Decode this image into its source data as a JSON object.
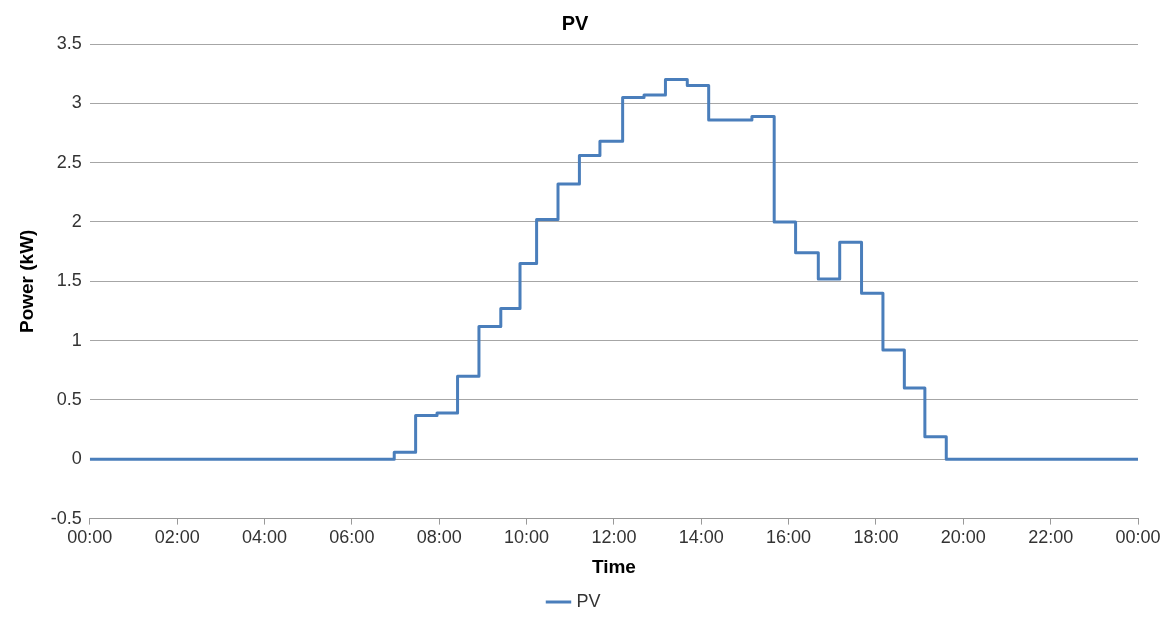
{
  "chart_data": {
    "type": "step",
    "title": "PV",
    "xlabel": "Time",
    "ylabel": "Power (kW)",
    "xlim": [
      0,
      24
    ],
    "xticks": [
      {
        "value": 0,
        "label": "00:00"
      },
      {
        "value": 2,
        "label": "02:00"
      },
      {
        "value": 4,
        "label": "04:00"
      },
      {
        "value": 6,
        "label": "06:00"
      },
      {
        "value": 8,
        "label": "08:00"
      },
      {
        "value": 10,
        "label": "10:00"
      },
      {
        "value": 12,
        "label": "12:00"
      },
      {
        "value": 14,
        "label": "14:00"
      },
      {
        "value": 16,
        "label": "16:00"
      },
      {
        "value": 18,
        "label": "18:00"
      },
      {
        "value": 20,
        "label": "20:00"
      },
      {
        "value": 22,
        "label": "22:00"
      },
      {
        "value": 24,
        "label": "00:00"
      }
    ],
    "ylim": [
      -0.5,
      3.5
    ],
    "yticks": [
      -0.5,
      0,
      0.5,
      1,
      1.5,
      2,
      2.5,
      3,
      3.5
    ],
    "grid": "y",
    "legend": "bottom",
    "marker": "none",
    "line_style": "solid",
    "series": [
      {
        "name": "PV",
        "color": "#4a7ebb",
        "x": [
          0,
          6.97,
          7.46,
          7.95,
          8.42,
          8.91,
          9.41,
          9.85,
          10.23,
          10.72,
          11.21,
          11.68,
          12.2,
          12.69,
          13.18,
          13.68,
          14.17,
          15.16,
          15.67,
          16.16,
          16.68,
          17.17,
          17.67,
          18.16,
          18.65,
          19.12,
          19.61,
          24
        ],
        "values": [
          0,
          0.06,
          0.37,
          0.39,
          0.7,
          1.12,
          1.27,
          1.65,
          2.02,
          2.32,
          2.56,
          2.68,
          3.05,
          3.07,
          3.2,
          3.15,
          2.86,
          2.89,
          2,
          1.74,
          1.52,
          1.83,
          1.4,
          0.92,
          0.6,
          0.19,
          0,
          0
        ]
      }
    ]
  }
}
